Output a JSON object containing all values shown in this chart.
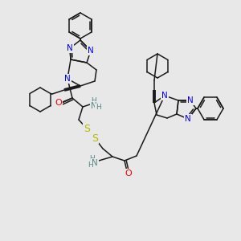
{
  "bg": "#e8e8e8",
  "C": "#1a1a1a",
  "N": "#0000ee",
  "O": "#ee0000",
  "S": "#b8b800",
  "H": "#558888"
}
